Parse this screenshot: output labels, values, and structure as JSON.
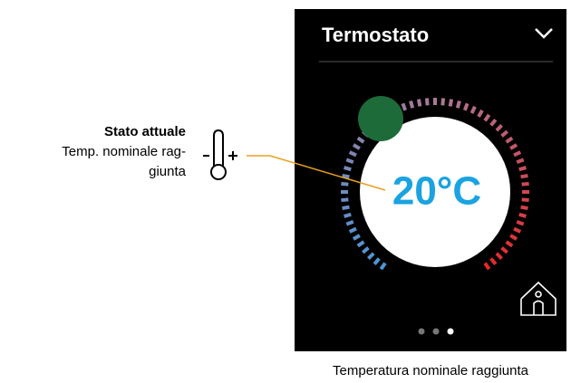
{
  "annotation": {
    "title": "Stato attuale",
    "lines": [
      "Temp. nominale rag-",
      "giunta"
    ]
  },
  "screen": {
    "title": "Termostato",
    "temperature": "20°C"
  },
  "caption": "Temperatura nominale raggiunta"
}
